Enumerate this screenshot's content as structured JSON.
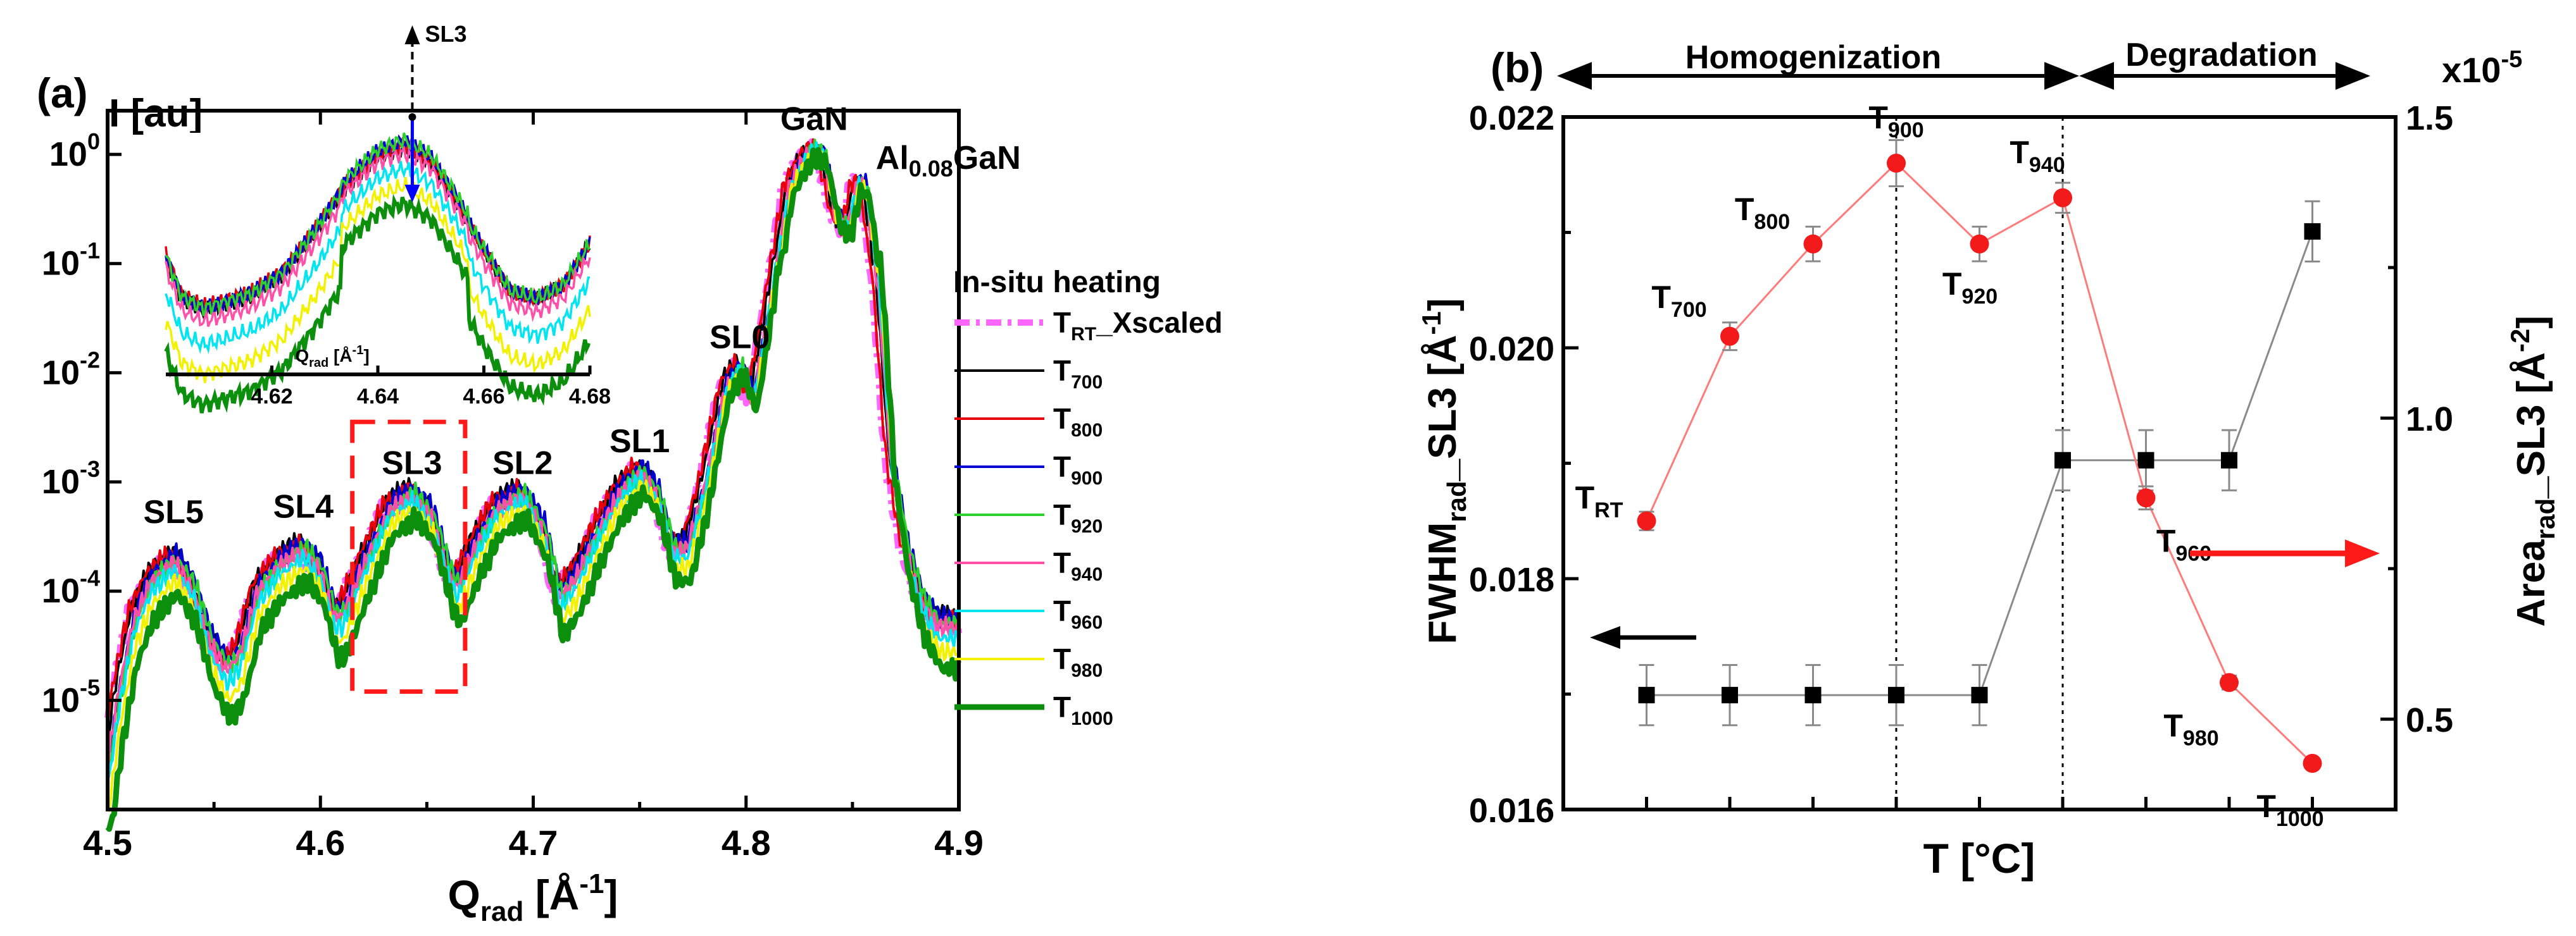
{
  "chart_data": [
    {
      "type": "line",
      "panel_label": "(a)",
      "xlabel_main": "Q",
      "xlabel_sub": "rad",
      "xlabel_unit": " [Å",
      "xlabel_sup": "-1",
      "xlabel_end": "]",
      "ylabel": "I [au]",
      "xlim": [
        4.5,
        4.9
      ],
      "ylim_log10": [
        -6,
        0.4
      ],
      "xticks": [
        "4.5",
        "4.6",
        "4.7",
        "4.8",
        "4.9"
      ],
      "xtick_values": [
        4.5,
        4.6,
        4.7,
        4.8,
        4.9
      ],
      "yticks": [
        {
          "base": "10",
          "exp": "-5",
          "log": -5
        },
        {
          "base": "10",
          "exp": "-4",
          "log": -4
        },
        {
          "base": "10",
          "exp": "-3",
          "log": -3
        },
        {
          "base": "10",
          "exp": "-2",
          "log": -2
        },
        {
          "base": "10",
          "exp": "-1",
          "log": -1
        },
        {
          "base": "10",
          "exp": "0",
          "log": 0
        }
      ],
      "peaks": [
        {
          "label": "SL5",
          "x": 4.531,
          "logI": -3.55
        },
        {
          "label": "SL4",
          "x": 4.592,
          "logI": -3.5
        },
        {
          "label": "SL3",
          "x": 4.643,
          "logI": -3.1
        },
        {
          "label": "SL2",
          "x": 4.695,
          "logI": -3.1
        },
        {
          "label": "SL1",
          "x": 4.75,
          "logI": -2.9
        },
        {
          "label": "SL0",
          "x": 4.797,
          "logI": -1.95
        },
        {
          "label": "GaN",
          "x": 4.832,
          "logI": 0.05
        }
      ],
      "algan_label": {
        "main": "Al",
        "sub": "0.08",
        "rest": "GaN",
        "x": 4.858,
        "logI": -0.25
      },
      "highlight_box": {
        "x_range": [
          4.615,
          4.668
        ],
        "logI_range": [
          -4.92,
          -2.45
        ]
      },
      "series_profile": {
        "x": [
          4.5,
          4.505,
          4.512,
          4.52,
          4.531,
          4.54,
          4.548,
          4.556,
          4.562,
          4.57,
          4.58,
          4.592,
          4.6,
          4.606,
          4.61,
          4.62,
          4.632,
          4.643,
          4.652,
          4.66,
          4.664,
          4.672,
          4.682,
          4.695,
          4.705,
          4.712,
          4.72,
          4.73,
          4.74,
          4.75,
          4.758,
          4.765,
          4.772,
          4.78,
          4.79,
          4.797,
          4.803,
          4.81,
          4.82,
          4.828,
          4.832,
          4.836,
          4.842,
          4.847,
          4.852,
          4.856,
          4.862,
          4.868,
          4.875,
          4.882,
          4.89,
          4.9
        ],
        "logI": [
          -5.55,
          -4.9,
          -4.25,
          -3.9,
          -3.7,
          -3.95,
          -4.45,
          -4.7,
          -4.55,
          -4.0,
          -3.75,
          -3.6,
          -3.8,
          -4.2,
          -4.2,
          -3.75,
          -3.25,
          -3.1,
          -3.3,
          -3.8,
          -3.95,
          -3.6,
          -3.25,
          -3.1,
          -3.45,
          -4.05,
          -3.85,
          -3.45,
          -3.1,
          -2.9,
          -3.1,
          -3.6,
          -3.6,
          -3.05,
          -2.15,
          -1.95,
          -2.25,
          -1.5,
          -0.3,
          0.0,
          0.05,
          0.0,
          -0.55,
          -0.7,
          -0.25,
          -0.3,
          -1.2,
          -2.8,
          -3.6,
          -4.05,
          -4.3,
          -4.3
        ]
      },
      "series": [
        {
          "name": "T_RT_Xscaled",
          "main": "T",
          "sub": "RT",
          "rest": "_Xscaled",
          "color": "#ff66ff",
          "width": 10,
          "dash": "24,10,6,10",
          "offset": 0.0,
          "shift": 0.003,
          "gain": 1.0
        },
        {
          "name": "T700",
          "main": "T",
          "sub": "700",
          "rest": "",
          "color": "#000000",
          "width": 4,
          "dash": "",
          "offset": 0.08,
          "shift": 0.001,
          "gain": 1.0
        },
        {
          "name": "T800",
          "main": "T",
          "sub": "800",
          "rest": "",
          "color": "#e8000b",
          "width": 4,
          "dash": "",
          "offset": 0.05,
          "shift": 0.0025,
          "gain": 1.0
        },
        {
          "name": "T900",
          "main": "T",
          "sub": "900",
          "rest": "",
          "color": "#0000d4",
          "width": 4,
          "dash": "",
          "offset": 0.06,
          "shift": -0.001,
          "gain": 1.0
        },
        {
          "name": "T920",
          "main": "T",
          "sub": "920",
          "rest": "",
          "color": "#2fd12f",
          "width": 4,
          "dash": "",
          "offset": 0.0,
          "shift": -0.0015,
          "gain": 1.0
        },
        {
          "name": "T940",
          "main": "T",
          "sub": "940",
          "rest": "",
          "color": "#ff4fa8",
          "width": 4,
          "dash": "",
          "offset": -0.03,
          "shift": 0.0,
          "gain": 1.0
        },
        {
          "name": "T960",
          "main": "T",
          "sub": "960",
          "rest": "",
          "color": "#00e5f0",
          "width": 4,
          "dash": "",
          "offset": -0.1,
          "shift": -0.0005,
          "gain": 1.05
        },
        {
          "name": "T980",
          "main": "T",
          "sub": "980",
          "rest": "",
          "color": "#f2f200",
          "width": 4,
          "dash": "",
          "offset": -0.2,
          "shift": -0.001,
          "gain": 1.1
        },
        {
          "name": "T1000",
          "main": "T",
          "sub": "1000",
          "rest": "",
          "color": "#0c8f0c",
          "width": 9,
          "dash": "",
          "offset": -0.32,
          "shift": -0.002,
          "gain": 1.15
        }
      ],
      "legend_title": "In-situ heating",
      "legend_position": "right"
    },
    {
      "type": "line",
      "inset_of": "(a)",
      "xlabel_main": "Q",
      "xlabel_sub": "rad",
      "xlabel_unit": " [Å",
      "xlabel_sup": "-1",
      "xlabel_end": "]",
      "xlim": [
        4.6,
        4.68
      ],
      "xticks": [
        "4.62",
        "4.64",
        "4.66",
        "4.68"
      ],
      "xtick_values": [
        4.62,
        4.64,
        4.66,
        4.68
      ],
      "ylim_log10": [
        -5.05,
        -3.0
      ],
      "arrow_label": "SL3",
      "arrow_x": 4.6465,
      "profile": {
        "x": [
          4.6,
          4.603,
          4.607,
          4.611,
          4.616,
          4.622,
          4.628,
          4.634,
          4.64,
          4.645,
          4.65,
          4.655,
          4.66,
          4.665,
          4.67,
          4.675,
          4.68
        ],
        "logI": [
          -4.05,
          -4.4,
          -4.5,
          -4.45,
          -4.38,
          -4.2,
          -3.85,
          -3.45,
          -3.2,
          -3.12,
          -3.25,
          -3.6,
          -4.0,
          -4.35,
          -4.42,
          -4.3,
          -3.95
        ]
      },
      "series_scale": [
        {
          "name": "T700",
          "offset": 0.0,
          "depth": 0.0
        },
        {
          "name": "T800",
          "offset": 0.02,
          "depth": 0.0
        },
        {
          "name": "T900",
          "offset": 0.04,
          "depth": 0.03
        },
        {
          "name": "T920",
          "offset": 0.06,
          "depth": 0.05
        },
        {
          "name": "T940",
          "offset": -0.05,
          "depth": 0.05
        },
        {
          "name": "T960",
          "offset": -0.18,
          "depth": 0.12
        },
        {
          "name": "T980",
          "offset": -0.33,
          "depth": 0.22
        },
        {
          "name": "T1000",
          "offset": -0.48,
          "depth": 0.33
        }
      ]
    },
    {
      "type": "scatter",
      "panel_label": "(b)",
      "xlabel": "T [°C]",
      "ylabel_left_main": "FWHM",
      "ylabel_left_sub": "rad",
      "ylabel_left_rest": "_SL3 [Å",
      "ylabel_left_sup": "-1",
      "ylabel_left_end": "]",
      "ylabel_right_main": "Area",
      "ylabel_right_sub": "rad",
      "ylabel_right_rest": "_SL3 [Å",
      "ylabel_right_sup": "-2",
      "ylabel_right_end": "]",
      "left_ylim": [
        0.016,
        0.022
      ],
      "left_yticks": [
        "0.016",
        "0.018",
        "0.020",
        "0.022"
      ],
      "left_ytick_values": [
        0.016,
        0.018,
        0.02,
        0.022
      ],
      "right_ylim": [
        0.35,
        1.5
      ],
      "right_yticks": [
        "0.5",
        "1.0",
        "1.5"
      ],
      "right_ytick_values": [
        0.5,
        1.0,
        1.5
      ],
      "right_multiplier": "x10",
      "right_multiplier_exp": "-5",
      "x_positions": [
        1,
        2,
        3,
        4,
        5,
        6,
        7,
        8,
        9
      ],
      "xlim": [
        0,
        10
      ],
      "phase_homogenization": "Homogenization",
      "phase_degradation": "Degradation",
      "dashed_lines_x": [
        4,
        6
      ],
      "fwhm_series": {
        "name": "FWHM_rad_SL3",
        "color": "#f21a1a",
        "values": [
          0.0185,
          0.0201,
          0.0209,
          0.0216,
          0.0209,
          0.0213,
          0.0187,
          0.0171,
          0.0164
        ],
        "errors": [
          8e-05,
          0.00012,
          0.00015,
          0.0002,
          0.00015,
          0.00013,
          0.0001,
          6e-05,
          4e-05
        ],
        "labels": [
          {
            "main": "T",
            "sub": "RT"
          },
          {
            "main": "T",
            "sub": "700"
          },
          {
            "main": "T",
            "sub": "800"
          },
          {
            "main": "T",
            "sub": "900"
          },
          {
            "main": "T",
            "sub": "920"
          },
          {
            "main": "T",
            "sub": "940"
          },
          {
            "main": "T",
            "sub": "960"
          },
          {
            "main": "T",
            "sub": "980"
          },
          {
            "main": "T",
            "sub": "1000"
          }
        ]
      },
      "area_series": {
        "name": "Area_rad_SL3",
        "color": "#000000",
        "values": [
          0.54,
          0.54,
          0.54,
          0.54,
          0.54,
          0.93,
          0.93,
          0.93,
          1.31
        ],
        "errors": [
          0.05,
          0.05,
          0.05,
          0.05,
          0.05,
          0.05,
          0.05,
          0.05,
          0.05
        ]
      },
      "left_arrow_direction": "left",
      "right_arrow_direction": "right"
    }
  ]
}
